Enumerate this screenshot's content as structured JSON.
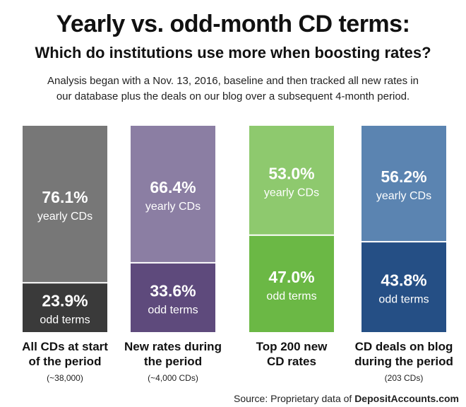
{
  "title": "Yearly vs. odd-month CD terms:",
  "subtitle": "Which do institutions use more when boosting rates?",
  "description": "Analysis began with a Nov. 13, 2016, baseline and then tracked all new rates in our database plus the deals on our blog over a subsequent 4-month period.",
  "source": {
    "prefix": "Source: Proprietary data of",
    "brand": "DepositAccounts.com"
  },
  "chart_data": {
    "type": "bar",
    "stacked": true,
    "unit": "%",
    "categories": [
      {
        "line1": "All CDs at start",
        "line2": "of the period",
        "note": "(~38,000)"
      },
      {
        "line1": "New rates during",
        "line2": "the period",
        "note": "(~4,000 CDs)"
      },
      {
        "line1": "Top 200 new",
        "line2": "CD rates",
        "note": ""
      },
      {
        "line1": "CD deals on blog",
        "line2": "during the period",
        "note": "(203 CDs)"
      }
    ],
    "series": [
      {
        "name": "yearly CDs",
        "values": [
          76.1,
          66.4,
          53.0,
          56.2
        ],
        "labels": [
          "76.1%",
          "66.4%",
          "53.0%",
          "56.2%"
        ],
        "colors": [
          "#777777",
          "#8b7ea3",
          "#8ec96e",
          "#5b84b1"
        ]
      },
      {
        "name": "odd terms",
        "values": [
          23.9,
          33.6,
          47.0,
          43.8
        ],
        "labels": [
          "23.9%",
          "33.6%",
          "47.0%",
          "43.8%"
        ],
        "colors": [
          "#3a3a3a",
          "#5e4a7c",
          "#6bb845",
          "#254f85"
        ]
      }
    ],
    "ylim": [
      0,
      100
    ],
    "grid": false,
    "legend": "none"
  }
}
